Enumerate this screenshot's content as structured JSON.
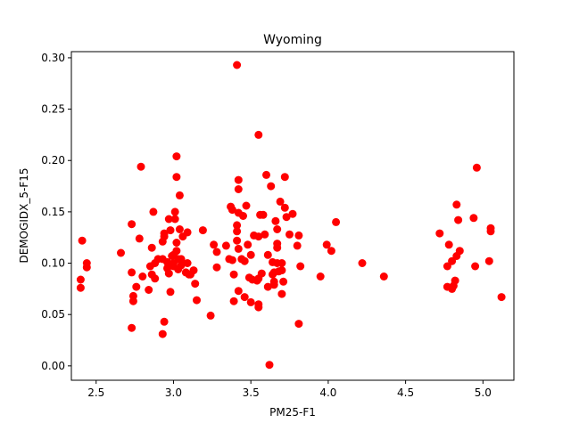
{
  "chart_data": {
    "type": "scatter",
    "title": "Wyoming",
    "xlabel": "PM25-F1",
    "ylabel": "DEMOGIDX_5-F15",
    "xlim": [
      2.34,
      5.2
    ],
    "ylim": [
      -0.014,
      0.306
    ],
    "xticks": [
      2.5,
      3.0,
      3.5,
      4.0,
      4.5,
      5.0
    ],
    "xtick_labels": [
      "2.5",
      "3.0",
      "3.5",
      "4.0",
      "4.5",
      "5.0"
    ],
    "yticks": [
      0.0,
      0.05,
      0.1,
      0.15,
      0.2,
      0.25,
      0.3
    ],
    "ytick_labels": [
      "0.00",
      "0.05",
      "0.10",
      "0.15",
      "0.20",
      "0.25",
      "0.30"
    ],
    "grid": false,
    "marker_color": "#ff0000",
    "points": [
      [
        2.41,
        0.122
      ],
      [
        2.4,
        0.084
      ],
      [
        2.4,
        0.076
      ],
      [
        2.44,
        0.1
      ],
      [
        2.44,
        0.096
      ],
      [
        2.66,
        0.11
      ],
      [
        2.73,
        0.138
      ],
      [
        2.73,
        0.091
      ],
      [
        2.73,
        0.037
      ],
      [
        2.74,
        0.068
      ],
      [
        2.74,
        0.063
      ],
      [
        2.76,
        0.077
      ],
      [
        2.78,
        0.124
      ],
      [
        2.79,
        0.194
      ],
      [
        2.8,
        0.087
      ],
      [
        2.84,
        0.074
      ],
      [
        2.85,
        0.097
      ],
      [
        2.86,
        0.115
      ],
      [
        2.86,
        0.089
      ],
      [
        2.87,
        0.15
      ],
      [
        2.88,
        0.1
      ],
      [
        2.88,
        0.085
      ],
      [
        2.9,
        0.104
      ],
      [
        2.93,
        0.121
      ],
      [
        2.93,
        0.104
      ],
      [
        2.93,
        0.031
      ],
      [
        2.94,
        0.043
      ],
      [
        2.94,
        0.129
      ],
      [
        2.94,
        0.126
      ],
      [
        2.96,
        0.101
      ],
      [
        2.96,
        0.095
      ],
      [
        2.97,
        0.09
      ],
      [
        2.97,
        0.143
      ],
      [
        2.98,
        0.132
      ],
      [
        2.98,
        0.072
      ],
      [
        2.99,
        0.107
      ],
      [
        3.0,
        0.108
      ],
      [
        3.0,
        0.1
      ],
      [
        3.0,
        0.097
      ],
      [
        3.01,
        0.143
      ],
      [
        3.01,
        0.15
      ],
      [
        3.02,
        0.204
      ],
      [
        3.02,
        0.184
      ],
      [
        3.02,
        0.12
      ],
      [
        3.02,
        0.112
      ],
      [
        3.03,
        0.094
      ],
      [
        3.03,
        0.104
      ],
      [
        3.04,
        0.166
      ],
      [
        3.04,
        0.133
      ],
      [
        3.05,
        0.104
      ],
      [
        3.05,
        0.098
      ],
      [
        3.06,
        0.126
      ],
      [
        3.08,
        0.091
      ],
      [
        3.09,
        0.13
      ],
      [
        3.09,
        0.1
      ],
      [
        3.1,
        0.089
      ],
      [
        3.11,
        0.089
      ],
      [
        3.13,
        0.093
      ],
      [
        3.14,
        0.08
      ],
      [
        3.15,
        0.064
      ],
      [
        3.19,
        0.132
      ],
      [
        3.24,
        0.049
      ],
      [
        3.26,
        0.118
      ],
      [
        3.28,
        0.111
      ],
      [
        3.28,
        0.096
      ],
      [
        3.34,
        0.117
      ],
      [
        3.36,
        0.104
      ],
      [
        3.37,
        0.155
      ],
      [
        3.38,
        0.152
      ],
      [
        3.38,
        0.103
      ],
      [
        3.39,
        0.089
      ],
      [
        3.39,
        0.063
      ],
      [
        3.41,
        0.293
      ],
      [
        3.41,
        0.137
      ],
      [
        3.41,
        0.131
      ],
      [
        3.41,
        0.122
      ],
      [
        3.42,
        0.181
      ],
      [
        3.42,
        0.172
      ],
      [
        3.42,
        0.149
      ],
      [
        3.42,
        0.114
      ],
      [
        3.42,
        0.073
      ],
      [
        3.44,
        0.104
      ],
      [
        3.45,
        0.146
      ],
      [
        3.46,
        0.102
      ],
      [
        3.46,
        0.067
      ],
      [
        3.47,
        0.156
      ],
      [
        3.48,
        0.118
      ],
      [
        3.49,
        0.086
      ],
      [
        3.5,
        0.108
      ],
      [
        3.5,
        0.062
      ],
      [
        3.51,
        0.084
      ],
      [
        3.52,
        0.127
      ],
      [
        3.54,
        0.083
      ],
      [
        3.55,
        0.225
      ],
      [
        3.55,
        0.126
      ],
      [
        3.55,
        0.085
      ],
      [
        3.55,
        0.06
      ],
      [
        3.55,
        0.057
      ],
      [
        3.56,
        0.147
      ],
      [
        3.57,
        0.09
      ],
      [
        3.58,
        0.147
      ],
      [
        3.59,
        0.128
      ],
      [
        3.6,
        0.186
      ],
      [
        3.61,
        0.108
      ],
      [
        3.61,
        0.077
      ],
      [
        3.62,
        0.001
      ],
      [
        3.63,
        0.175
      ],
      [
        3.64,
        0.101
      ],
      [
        3.64,
        0.089
      ],
      [
        3.65,
        0.091
      ],
      [
        3.65,
        0.082
      ],
      [
        3.65,
        0.079
      ],
      [
        3.66,
        0.141
      ],
      [
        3.67,
        0.133
      ],
      [
        3.67,
        0.119
      ],
      [
        3.67,
        0.115
      ],
      [
        3.67,
        0.1
      ],
      [
        3.68,
        0.092
      ],
      [
        3.69,
        0.16
      ],
      [
        3.7,
        0.1
      ],
      [
        3.7,
        0.093
      ],
      [
        3.7,
        0.07
      ],
      [
        3.71,
        0.082
      ],
      [
        3.72,
        0.184
      ],
      [
        3.72,
        0.154
      ],
      [
        3.73,
        0.145
      ],
      [
        3.75,
        0.128
      ],
      [
        3.77,
        0.148
      ],
      [
        3.8,
        0.117
      ],
      [
        3.81,
        0.127
      ],
      [
        3.81,
        0.041
      ],
      [
        3.82,
        0.097
      ],
      [
        3.95,
        0.087
      ],
      [
        3.99,
        0.118
      ],
      [
        4.02,
        0.112
      ],
      [
        4.05,
        0.14
      ],
      [
        4.22,
        0.1
      ],
      [
        4.36,
        0.087
      ],
      [
        4.72,
        0.129
      ],
      [
        4.77,
        0.097
      ],
      [
        4.77,
        0.077
      ],
      [
        4.78,
        0.118
      ],
      [
        4.8,
        0.102
      ],
      [
        4.8,
        0.075
      ],
      [
        4.81,
        0.078
      ],
      [
        4.82,
        0.083
      ],
      [
        4.83,
        0.107
      ],
      [
        4.83,
        0.157
      ],
      [
        4.84,
        0.142
      ],
      [
        4.85,
        0.112
      ],
      [
        4.94,
        0.144
      ],
      [
        4.95,
        0.097
      ],
      [
        4.96,
        0.193
      ],
      [
        5.04,
        0.102
      ],
      [
        5.05,
        0.134
      ],
      [
        5.05,
        0.131
      ],
      [
        5.12,
        0.067
      ]
    ]
  }
}
